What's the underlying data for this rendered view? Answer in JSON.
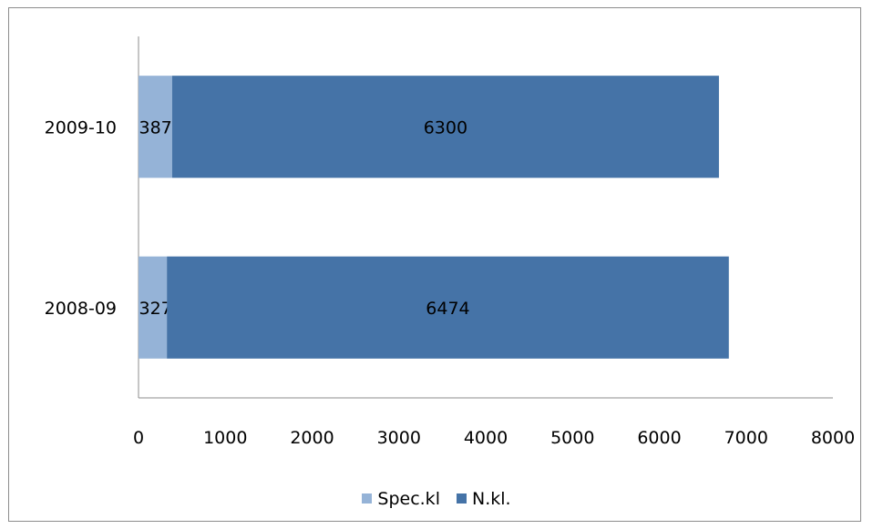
{
  "chart_data": {
    "type": "bar",
    "orientation": "horizontal",
    "stacked": true,
    "categories": [
      "2008-09",
      "2009-10"
    ],
    "series": [
      {
        "name": "Spec.kl",
        "values": [
          327,
          387
        ],
        "color": "#95b3d7"
      },
      {
        "name": "N.kl.",
        "values": [
          6474,
          6300
        ],
        "color": "#4573a7"
      }
    ],
    "xlim": [
      0,
      8000
    ],
    "xticks": [
      0,
      1000,
      2000,
      3000,
      4000,
      5000,
      6000,
      7000,
      8000
    ],
    "data_labels": true,
    "grid": false,
    "legend": "bottom"
  }
}
